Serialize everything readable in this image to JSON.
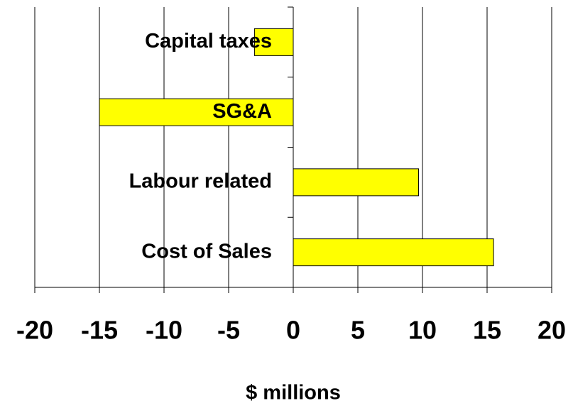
{
  "chart_data": {
    "type": "bar",
    "orientation": "horizontal",
    "categories": [
      "Capital taxes",
      "SG&A",
      "Labour related",
      "Cost of Sales"
    ],
    "values": [
      -3,
      -15,
      9.7,
      15.5
    ],
    "color": "#ffff00",
    "xlabel": "$ millions",
    "xlim": [
      -20,
      20
    ],
    "xticks": [
      -20,
      -15,
      -10,
      -5,
      0,
      5,
      10,
      15,
      20
    ],
    "grid": true
  }
}
